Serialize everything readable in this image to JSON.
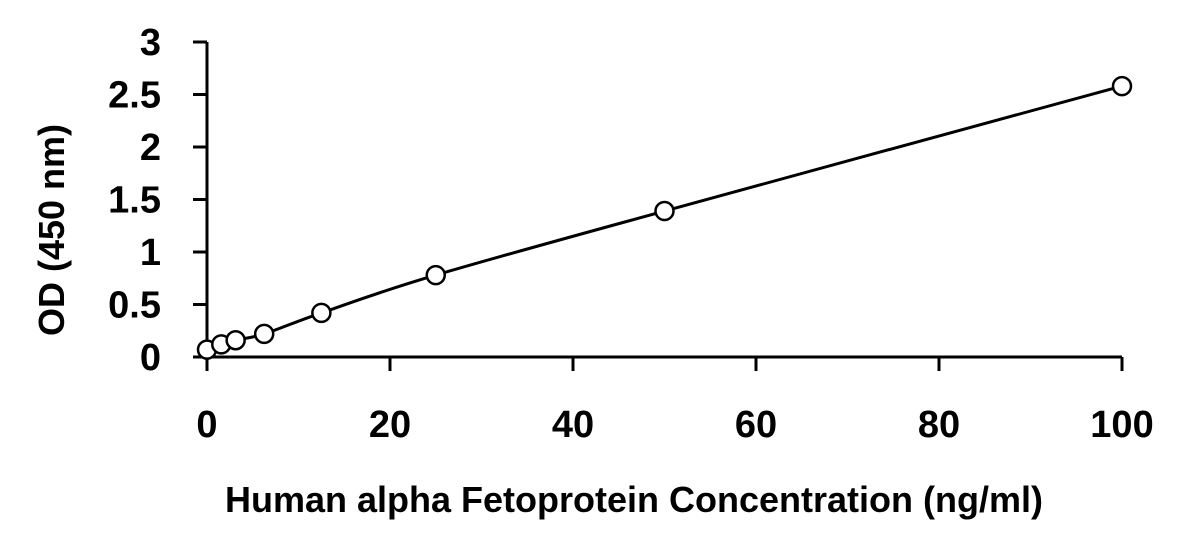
{
  "chart_data": {
    "type": "scatter",
    "title": "",
    "xlabel": "Human alpha Fetoprotein Concentration (ng/ml)",
    "ylabel": "OD (450 nm)",
    "xlim": [
      0,
      100
    ],
    "ylim": [
      0,
      3
    ],
    "x_ticks": [
      "0",
      "20",
      "40",
      "60",
      "80",
      "100"
    ],
    "y_ticks": [
      "0",
      "0.5",
      "1",
      "1.5",
      "2",
      "2.5",
      "3"
    ],
    "grid": false,
    "legend": "none",
    "series": [
      {
        "x": [
          0,
          1.56,
          3.13,
          6.25,
          12.5,
          25,
          50,
          100
        ],
        "y": [
          0.07,
          0.12,
          0.16,
          0.22,
          0.42,
          0.78,
          1.39,
          2.58
        ],
        "marker": "open-circle",
        "line": "fitted-curve",
        "color": "#000000"
      }
    ]
  }
}
